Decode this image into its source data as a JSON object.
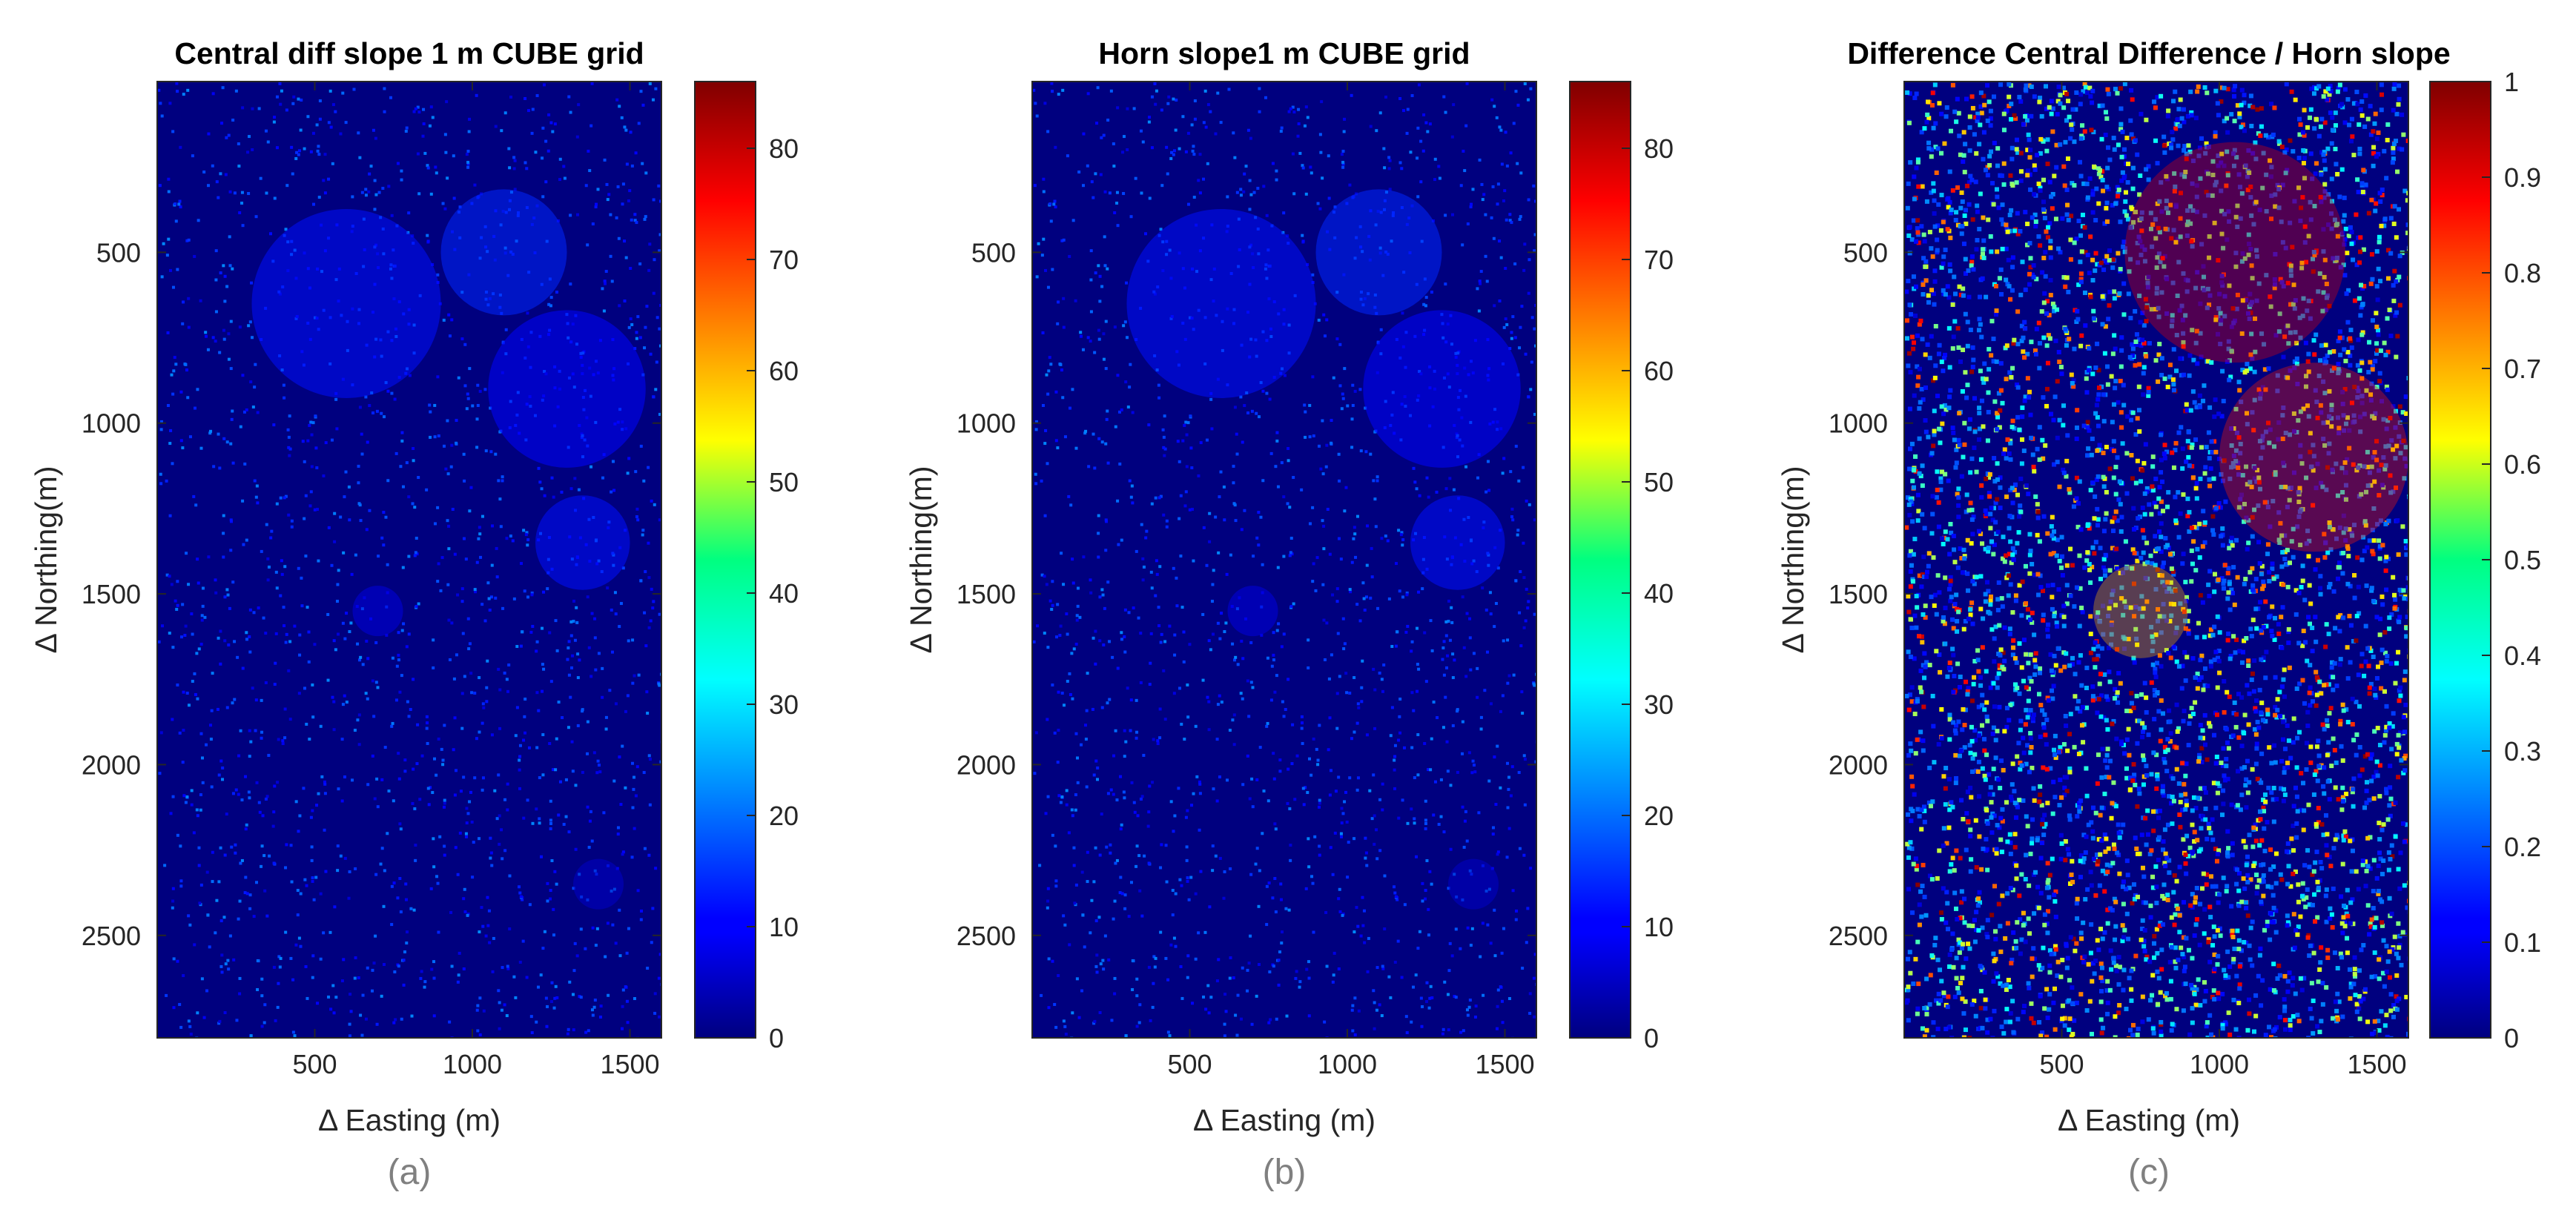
{
  "chart_data": [
    {
      "type": "heatmap",
      "panel_label": "(a)",
      "title": "Central diff slope 1 m CUBE grid",
      "xlabel": "Δ Easting (m)",
      "ylabel": "Δ Northing(m)",
      "xlim": [
        0,
        1600
      ],
      "ylim": [
        2800,
        0
      ],
      "xticks": [
        "500",
        "1000",
        "1500"
      ],
      "yticks": [
        "500",
        "1000",
        "1500",
        "2000",
        "2500"
      ],
      "colorbar": {
        "min": 0,
        "max": 86,
        "ticks": [
          "0",
          "10",
          "20",
          "30",
          "40",
          "50",
          "60",
          "70",
          "80"
        ]
      },
      "colormap": "jet",
      "data_hotspots": [
        {
          "x": 1100,
          "y": 500,
          "r": 200,
          "v": 14
        },
        {
          "x": 600,
          "y": 650,
          "r": 300,
          "v": 12
        },
        {
          "x": 1300,
          "y": 900,
          "r": 250,
          "v": 11
        },
        {
          "x": 1350,
          "y": 1350,
          "r": 150,
          "v": 12
        },
        {
          "x": 700,
          "y": 1550,
          "r": 80,
          "v": 8
        },
        {
          "x": 1400,
          "y": 2350,
          "r": 80,
          "v": 6
        }
      ]
    },
    {
      "type": "heatmap",
      "panel_label": "(b)",
      "title": "Horn slope1 m CUBE grid",
      "xlabel": "Δ Easting (m)",
      "ylabel": "Δ Northing(m)",
      "xlim": [
        0,
        1600
      ],
      "ylim": [
        2800,
        0
      ],
      "xticks": [
        "500",
        "1000",
        "1500"
      ],
      "yticks": [
        "500",
        "1000",
        "1500",
        "2000",
        "2500"
      ],
      "colorbar": {
        "min": 0,
        "max": 86,
        "ticks": [
          "0",
          "10",
          "20",
          "30",
          "40",
          "50",
          "60",
          "70",
          "80"
        ]
      },
      "colormap": "jet",
      "data_hotspots": [
        {
          "x": 1100,
          "y": 500,
          "r": 200,
          "v": 14
        },
        {
          "x": 600,
          "y": 650,
          "r": 300,
          "v": 12
        },
        {
          "x": 1300,
          "y": 900,
          "r": 250,
          "v": 11
        },
        {
          "x": 1350,
          "y": 1350,
          "r": 150,
          "v": 12
        },
        {
          "x": 700,
          "y": 1550,
          "r": 80,
          "v": 8
        },
        {
          "x": 1400,
          "y": 2350,
          "r": 80,
          "v": 6
        }
      ]
    },
    {
      "type": "heatmap",
      "panel_label": "(c)",
      "title": "Difference Central Difference / Horn slope",
      "xlabel": "Δ Easting (m)",
      "ylabel": "Δ Northing(m)",
      "xlim": [
        0,
        1600
      ],
      "ylim": [
        2800,
        0
      ],
      "xticks": [
        "500",
        "1000",
        "1500"
      ],
      "yticks": [
        "500",
        "1000",
        "1500",
        "2000",
        "2500"
      ],
      "colorbar": {
        "min": 0,
        "max": 1,
        "ticks": [
          "0",
          "0.1",
          "0.2",
          "0.3",
          "0.4",
          "0.5",
          "0.6",
          "0.7",
          "0.8",
          "0.9",
          "1"
        ]
      },
      "colormap": "jet",
      "data_hotspots": [
        {
          "x": 1050,
          "y": 500,
          "r": 350,
          "v": 0.9
        },
        {
          "x": 1300,
          "y": 1100,
          "r": 300,
          "v": 0.85
        },
        {
          "x": 750,
          "y": 1550,
          "r": 150,
          "v": 0.7
        }
      ]
    }
  ],
  "colors": {
    "background": "#00007f",
    "frame": "#262626"
  }
}
